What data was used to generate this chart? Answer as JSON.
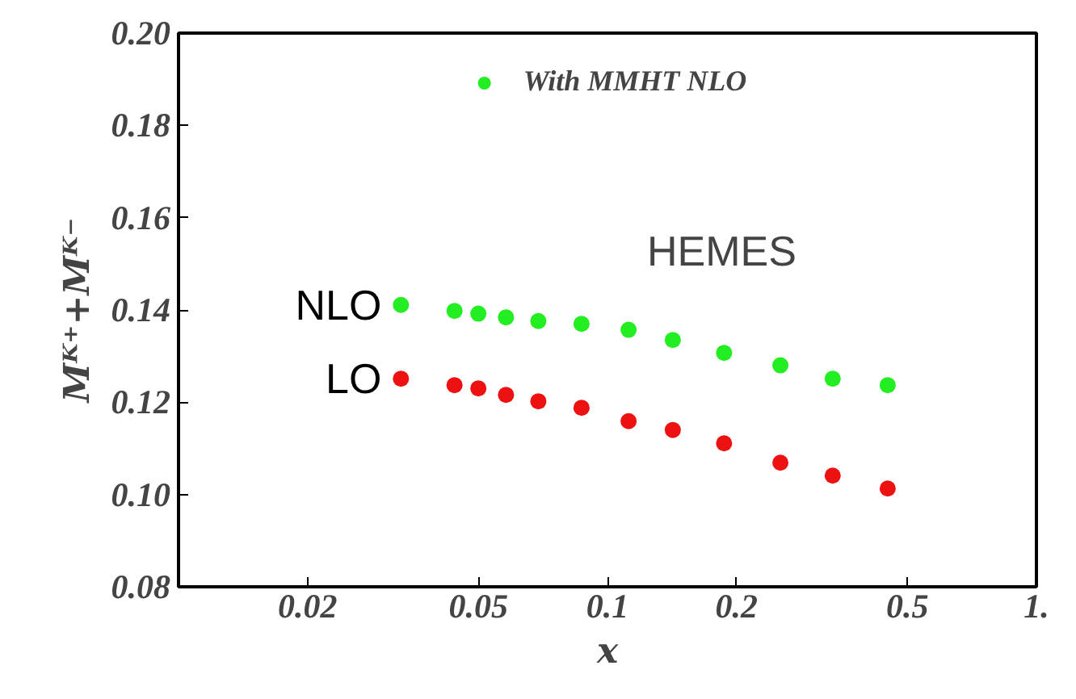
{
  "chart_data": {
    "type": "scatter",
    "xlabel": "x",
    "ylabel": "Mᴷ⁺+Mᴷ⁻",
    "legend": "top",
    "log": "x",
    "marker": "circle",
    "grid": false,
    "annotations": [
      "HEMES",
      {
        "text": "NLO",
        "x": 0.033,
        "y": 0.1411
      },
      {
        "text": "LO",
        "x": 0.033,
        "y": 0.1251
      }
    ],
    "x": [
      0.033,
      0.044,
      0.05,
      0.058,
      0.069,
      0.087,
      0.112,
      0.142,
      0.187,
      0.253,
      0.335,
      0.45
    ],
    "series": [
      {
        "name": "With MMHT NLO",
        "color": "#22ee22",
        "values": [
          0.1411,
          0.1398,
          0.1392,
          0.1384,
          0.1376,
          0.137,
          0.1357,
          0.1335,
          0.1307,
          0.128,
          0.1251,
          0.1237
        ]
      },
      {
        "color": "#ee1111",
        "values": [
          0.1251,
          0.1237,
          0.123,
          0.1216,
          0.1202,
          0.1188,
          0.1159,
          0.114,
          0.1111,
          0.1069,
          0.1041,
          0.1013
        ]
      }
    ],
    "xlim": [
      0.01,
      1
    ],
    "xticks": [
      0.02,
      0.05,
      0.1,
      0.2,
      0.5,
      {
        "value": 1,
        "label": "1."
      }
    ],
    "ylim": [
      0.08,
      0.2
    ],
    "yticks": [
      {
        "value": 0.08,
        "label": "0.08"
      },
      {
        "value": 0.1,
        "label": "0.10"
      },
      {
        "value": 0.12,
        "label": "0.12"
      },
      {
        "value": 0.14,
        "label": "0.14"
      },
      {
        "value": 0.16,
        "label": "0.16"
      },
      {
        "value": 0.18,
        "label": "0.18"
      },
      {
        "value": 0.2,
        "label": "0.20"
      }
    ]
  }
}
